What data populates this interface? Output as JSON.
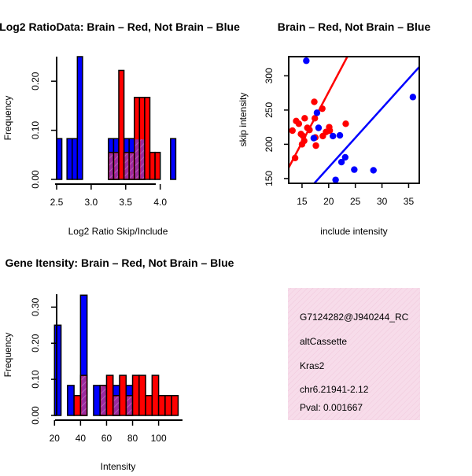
{
  "chart_data": [
    {
      "type": "bar",
      "title": "Log2 RatioData: Brain – Red, Not Brain – Blue",
      "xlabel": "Log2 Ratio Skip/Include",
      "ylabel": "Frequency",
      "xlim": [
        2.5,
        4.3
      ],
      "ylim": [
        0,
        0.25
      ],
      "xticks": [
        "2.5",
        "3.0",
        "3.5",
        "4.0"
      ],
      "yticks": [
        "0.00",
        "0.10",
        "0.20"
      ],
      "bin_width": 0.075,
      "series": [
        {
          "name": "Not Brain",
          "color": "#0000ff",
          "bins": [
            [
              2.5,
              0.083
            ],
            [
              2.65,
              0.083
            ],
            [
              2.725,
              0.083
            ],
            [
              2.8,
              0.25
            ],
            [
              3.25,
              0.083
            ],
            [
              3.325,
              0.083
            ],
            [
              3.475,
              0.083
            ],
            [
              3.55,
              0.083
            ],
            [
              3.625,
              0.083
            ],
            [
              3.7,
              0.083
            ],
            [
              4.15,
              0.083
            ]
          ]
        },
        {
          "name": "Brain",
          "color": "#ff0000",
          "bins": [
            [
              3.25,
              0.055
            ],
            [
              3.325,
              0.055
            ],
            [
              3.4,
              0.222
            ],
            [
              3.475,
              0.055
            ],
            [
              3.55,
              0.055
            ],
            [
              3.625,
              0.167
            ],
            [
              3.7,
              0.167
            ],
            [
              3.775,
              0.167
            ],
            [
              3.85,
              0.055
            ],
            [
              3.925,
              0.055
            ]
          ]
        }
      ]
    },
    {
      "type": "scatter",
      "title": "Brain – Red, Not Brain – Blue",
      "xlabel": "include intensity",
      "ylabel": "skip intensity",
      "xlim": [
        12.5,
        37
      ],
      "ylim": [
        143,
        328
      ],
      "xticks": [
        "15",
        "20",
        "25",
        "30",
        "35"
      ],
      "yticks": [
        "150",
        "200",
        "250",
        "300"
      ],
      "series": [
        {
          "name": "Brain",
          "color": "#ff0000",
          "points": [
            [
              13.2,
              220
            ],
            [
              13.7,
              180
            ],
            [
              13.9,
              234
            ],
            [
              14.4,
              230
            ],
            [
              14.8,
              215
            ],
            [
              15.0,
              200
            ],
            [
              15.2,
              212
            ],
            [
              15.4,
              205
            ],
            [
              15.5,
              238
            ],
            [
              16.0,
              224
            ],
            [
              16.4,
              221
            ],
            [
              17.3,
              262
            ],
            [
              17.4,
              238
            ],
            [
              17.5,
              210
            ],
            [
              17.6,
              198
            ],
            [
              18.8,
              252
            ],
            [
              18.9,
              212
            ],
            [
              19.5,
              218
            ],
            [
              20.1,
              225
            ],
            [
              20.2,
              220
            ],
            [
              23.2,
              230
            ]
          ],
          "fit": [
            [
              12.5,
              166
            ],
            [
              23.5,
              328
            ]
          ]
        },
        {
          "name": "Not Brain",
          "color": "#0000ff",
          "points": [
            [
              15.8,
              322
            ],
            [
              17.2,
              209
            ],
            [
              17.8,
              246
            ],
            [
              18.1,
              224
            ],
            [
              20.8,
              212
            ],
            [
              21.3,
              148
            ],
            [
              22.1,
              213
            ],
            [
              22.4,
              174
            ],
            [
              23.1,
              181
            ],
            [
              24.8,
              163
            ],
            [
              28.4,
              162
            ],
            [
              35.8,
              269
            ]
          ],
          "fit": [
            [
              17.3,
              143
            ],
            [
              37,
              313
            ]
          ]
        }
      ]
    },
    {
      "type": "bar",
      "title": "Gene Itensity: Brain – Red, Not Brain – Blue",
      "xlabel": "Intensity",
      "ylabel": "Frequency",
      "xlim": [
        18,
        122
      ],
      "ylim": [
        0,
        0.34
      ],
      "xticks": [
        "20",
        "40",
        "60",
        "80",
        "100"
      ],
      "yticks": [
        "0.00",
        "0.10",
        "0.20",
        "0.30"
      ],
      "bin_width": 5,
      "series": [
        {
          "name": "Not Brain",
          "color": "#0000ff",
          "bins": [
            [
              20,
              0.25
            ],
            [
              30,
              0.083
            ],
            [
              40,
              0.333
            ],
            [
              50,
              0.083
            ],
            [
              55,
              0.083
            ],
            [
              65,
              0.083
            ],
            [
              75,
              0.083
            ]
          ]
        },
        {
          "name": "Brain",
          "color": "#ff0000",
          "bins": [
            [
              35,
              0.055
            ],
            [
              40,
              0.111
            ],
            [
              55,
              0.083
            ],
            [
              60,
              0.111
            ],
            [
              65,
              0.055
            ],
            [
              70,
              0.111
            ],
            [
              75,
              0.055
            ],
            [
              80,
              0.111
            ],
            [
              85,
              0.111
            ],
            [
              90,
              0.055
            ],
            [
              95,
              0.111
            ],
            [
              100,
              0.055
            ],
            [
              105,
              0.055
            ],
            [
              110,
              0.055
            ]
          ]
        }
      ]
    }
  ],
  "info_panel": {
    "lines": [
      "G7124282@J940244_RC",
      "altCassette",
      "Kras2",
      "chr6.21941-2.12"
    ],
    "pval": "Pval: 0.001667",
    "pval_color": "#8b0000",
    "background": "#f7dcea"
  }
}
